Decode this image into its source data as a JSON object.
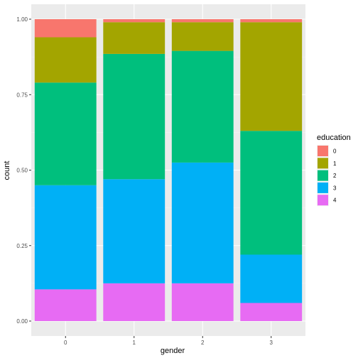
{
  "chart_data": {
    "type": "bar",
    "stacked": true,
    "position": "fill",
    "xlabel": "gender",
    "ylabel": "count",
    "categories": [
      "0",
      "1",
      "2",
      "3"
    ],
    "ylim": [
      0,
      1
    ],
    "yticks": [
      0,
      0.25,
      0.5,
      0.75,
      1
    ],
    "ytick_labels": [
      "0.00",
      "0.25",
      "0.50",
      "0.75",
      "1.00"
    ],
    "grid": true,
    "legend_title": "education",
    "legend_position": "right",
    "series": [
      {
        "name": "0",
        "color": "#F8766D",
        "values": [
          0.06,
          0.01,
          0.01,
          0.01
        ]
      },
      {
        "name": "1",
        "color": "#A3A500",
        "values": [
          0.15,
          0.105,
          0.095,
          0.36
        ]
      },
      {
        "name": "2",
        "color": "#00BF7D",
        "values": [
          0.34,
          0.415,
          0.37,
          0.41
        ]
      },
      {
        "name": "3",
        "color": "#00B0F6",
        "values": [
          0.345,
          0.345,
          0.4,
          0.16
        ]
      },
      {
        "name": "4",
        "color": "#E76BF3",
        "values": [
          0.105,
          0.125,
          0.125,
          0.06
        ]
      }
    ]
  }
}
